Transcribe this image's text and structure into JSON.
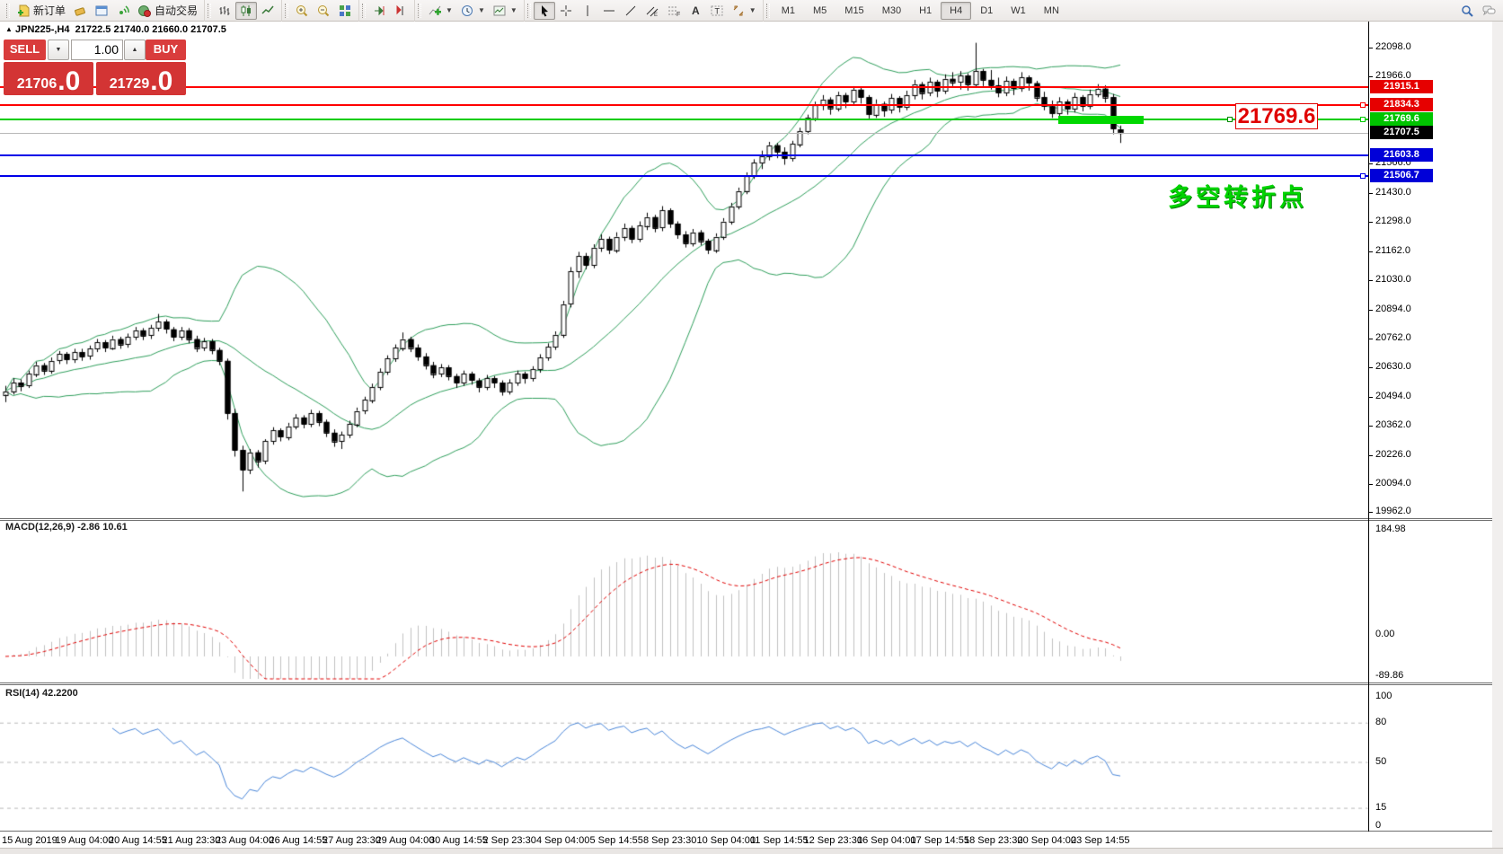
{
  "title": {
    "symbol": "JPN225-,H4",
    "ohlc_text": "21722.5 21740.0 21660.0 21707.5"
  },
  "toolbar": {
    "groups": [
      {
        "name": "trade-group",
        "items": [
          {
            "name": "new-order-button",
            "icon": "new-order",
            "label": "新订单"
          },
          {
            "name": "eraser-button",
            "icon": "eraser"
          },
          {
            "name": "charts-window-button",
            "icon": "window"
          },
          {
            "name": "signals-button",
            "icon": "signal"
          },
          {
            "name": "auto-trading-button",
            "icon": "autotrade",
            "label": "自动交易"
          }
        ]
      },
      {
        "name": "chart-type-group",
        "items": [
          {
            "name": "bar-chart-button",
            "icon": "bars"
          },
          {
            "name": "candlestick-button",
            "icon": "candles",
            "active": true
          },
          {
            "name": "line-chart-button",
            "icon": "linechart"
          }
        ]
      },
      {
        "name": "zoom-group",
        "items": [
          {
            "name": "zoom-in-button",
            "icon": "zoom-in"
          },
          {
            "name": "zoom-out-button",
            "icon": "zoom-out"
          },
          {
            "name": "tile-windows-button",
            "icon": "tiles"
          }
        ]
      },
      {
        "name": "scroll-group",
        "items": [
          {
            "name": "auto-scroll-button",
            "icon": "scroll-end"
          },
          {
            "name": "chart-shift-button",
            "icon": "chart-shift"
          }
        ]
      },
      {
        "name": "insert-group",
        "items": [
          {
            "name": "indicators-button",
            "icon": "indicators",
            "dropdown": true
          },
          {
            "name": "periods-button",
            "icon": "clock",
            "dropdown": true
          },
          {
            "name": "templates-button",
            "icon": "template",
            "dropdown": true
          }
        ]
      },
      {
        "name": "objects-group",
        "items": [
          {
            "name": "cursor-button",
            "icon": "cursor",
            "active": true
          },
          {
            "name": "crosshair-button",
            "icon": "crosshair"
          },
          {
            "name": "vertical-line-button",
            "icon": "vline"
          },
          {
            "name": "horizontal-line-button",
            "icon": "hline"
          },
          {
            "name": "trendline-button",
            "icon": "trendline"
          },
          {
            "name": "equidistant-channel-button",
            "icon": "channel"
          },
          {
            "name": "fibonacci-button",
            "icon": "fibo"
          },
          {
            "name": "text-button",
            "icon": "text-a"
          },
          {
            "name": "text-label-button",
            "icon": "text-t"
          },
          {
            "name": "arrows-button",
            "icon": "arrows",
            "dropdown": true
          }
        ]
      },
      {
        "name": "timeframe-group",
        "items": [
          {
            "name": "tf-m1",
            "label": "M1"
          },
          {
            "name": "tf-m5",
            "label": "M5"
          },
          {
            "name": "tf-m15",
            "label": "M15"
          },
          {
            "name": "tf-m30",
            "label": "M30"
          },
          {
            "name": "tf-h1",
            "label": "H1"
          },
          {
            "name": "tf-h4",
            "label": "H4",
            "active": true
          },
          {
            "name": "tf-d1",
            "label": "D1"
          },
          {
            "name": "tf-w1",
            "label": "W1"
          },
          {
            "name": "tf-mn",
            "label": "MN"
          }
        ]
      }
    ],
    "right_items": [
      {
        "name": "search-button",
        "icon": "search"
      },
      {
        "name": "chat-button",
        "icon": "chat"
      }
    ]
  },
  "one_click": {
    "sell_label": "SELL",
    "buy_label": "BUY",
    "volume": "1.00",
    "sell_price_main": "21706",
    "sell_price_dec": ".0",
    "buy_price_main": "21729",
    "buy_price_dec": ".0"
  },
  "price_lines": [
    {
      "value": "21915.1",
      "price": 21915.1,
      "color": "#ff0000",
      "badge": "#e60000",
      "width": 2,
      "handle": false
    },
    {
      "value": "21834.3",
      "price": 21834.3,
      "color": "#ff0000",
      "badge": "#e60000",
      "width": 2,
      "handle": true
    },
    {
      "value": "21769.6",
      "price": 21769.6,
      "color": "#00cc00",
      "badge": "#00c400",
      "width": 2,
      "handle": true
    },
    {
      "value": "21603.8",
      "price": 21603.8,
      "color": "#0000e8",
      "badge": "#0000d8",
      "width": 2,
      "handle": false
    },
    {
      "value": "21506.7",
      "price": 21506.7,
      "color": "#0000e8",
      "badge": "#0000d8",
      "width": 2,
      "handle": true
    }
  ],
  "current_price": {
    "value": "21707.5",
    "price": 21707.5,
    "line_color": "#b8b8b8",
    "badge": "#000000"
  },
  "annotations": {
    "price_box_text": "21769.6",
    "note_text": "多空转折点",
    "note_color": "#00d400",
    "highlight_color": "#00d800"
  },
  "macd_panel": {
    "label": "MACD(12,26,9)",
    "values": "-2.86 10.61",
    "axis": [
      "184.98",
      "0.00",
      "-89.86"
    ]
  },
  "rsi_panel": {
    "label": "RSI(14)",
    "value": "42.2200",
    "axis": [
      "100",
      "80",
      "50",
      "15",
      "0"
    ]
  },
  "chart_data": {
    "type": "candlestick",
    "symbol": "JPN225-",
    "timeframe": "H4",
    "title": "JPN225-,H4 21722.5 21740.0 21660.0 21707.5",
    "y_axis_ticks": [
      "22098.0",
      "21966.0",
      "21566.0",
      "21430.0",
      "21298.0",
      "21162.0",
      "21030.0",
      "20894.0",
      "20762.0",
      "20630.0",
      "20494.0",
      "20362.0",
      "20226.0",
      "20094.0",
      "19962.0"
    ],
    "x_labels": [
      "15 Aug 2019",
      "19 Aug 04:00",
      "20 Aug 14:55",
      "21 Aug 23:30",
      "23 Aug 04:00",
      "26 Aug 14:55",
      "27 Aug 23:30",
      "29 Aug 04:00",
      "30 Aug 14:55",
      "2 Sep 23:30",
      "4 Sep 04:00",
      "5 Sep 14:55",
      "8 Sep 23:30",
      "10 Sep 04:00",
      "11 Sep 14:55",
      "12 Sep 23:30",
      "16 Sep 04:00",
      "17 Sep 14:55",
      "18 Sep 23:30",
      "20 Sep 04:00",
      "23 Sep 14:55"
    ],
    "overlays": {
      "bollinger": {
        "period": 20,
        "deviation": 2,
        "color": "#2e9e5b"
      }
    },
    "indicators": {
      "macd": {
        "params": [
          12,
          26,
          9
        ],
        "current": [
          -2.86,
          10.61
        ],
        "scale_max": 184.98,
        "scale_min": -89.86,
        "histogram_color": "#c0c0c0",
        "signal_color": "#e00000"
      },
      "rsi": {
        "period": 14,
        "current": 42.22,
        "levels": [
          80,
          50,
          15
        ],
        "line_color": "#4a86d8"
      }
    },
    "ohlc": [
      [
        20505,
        20545,
        20470,
        20520
      ],
      [
        20520,
        20580,
        20505,
        20560
      ],
      [
        20560,
        20575,
        20520,
        20545
      ],
      [
        20545,
        20615,
        20535,
        20600
      ],
      [
        20600,
        20655,
        20585,
        20640
      ],
      [
        20640,
        20650,
        20595,
        20615
      ],
      [
        20615,
        20675,
        20600,
        20660
      ],
      [
        20660,
        20705,
        20645,
        20690
      ],
      [
        20690,
        20700,
        20645,
        20665
      ],
      [
        20665,
        20715,
        20650,
        20700
      ],
      [
        20700,
        20715,
        20660,
        20680
      ],
      [
        20680,
        20730,
        20665,
        20715
      ],
      [
        20715,
        20760,
        20700,
        20745
      ],
      [
        20745,
        20755,
        20700,
        20720
      ],
      [
        20720,
        20775,
        20710,
        20760
      ],
      [
        20760,
        20770,
        20715,
        20735
      ],
      [
        20735,
        20785,
        20720,
        20770
      ],
      [
        20770,
        20815,
        20755,
        20800
      ],
      [
        20800,
        20810,
        20755,
        20775
      ],
      [
        20775,
        20825,
        20760,
        20810
      ],
      [
        20810,
        20875,
        20795,
        20840
      ],
      [
        20840,
        20850,
        20785,
        20805
      ],
      [
        20805,
        20815,
        20750,
        20770
      ],
      [
        20770,
        20815,
        20755,
        20800
      ],
      [
        20800,
        20810,
        20740,
        20760
      ],
      [
        20760,
        20775,
        20700,
        20720
      ],
      [
        20720,
        20765,
        20705,
        20750
      ],
      [
        20750,
        20760,
        20690,
        20710
      ],
      [
        20710,
        20720,
        20640,
        20660
      ],
      [
        20660,
        20670,
        20390,
        20420
      ],
      [
        20420,
        20440,
        20220,
        20250
      ],
      [
        20250,
        20270,
        20060,
        20160
      ],
      [
        20160,
        20255,
        20140,
        20240
      ],
      [
        20240,
        20250,
        20170,
        20200
      ],
      [
        20200,
        20300,
        20185,
        20290
      ],
      [
        20290,
        20355,
        20275,
        20340
      ],
      [
        20340,
        20350,
        20290,
        20310
      ],
      [
        20310,
        20375,
        20295,
        20360
      ],
      [
        20360,
        20415,
        20345,
        20400
      ],
      [
        20400,
        20410,
        20350,
        20370
      ],
      [
        20370,
        20435,
        20355,
        20420
      ],
      [
        20420,
        20430,
        20360,
        20380
      ],
      [
        20380,
        20390,
        20310,
        20330
      ],
      [
        20330,
        20345,
        20265,
        20290
      ],
      [
        20290,
        20335,
        20255,
        20320
      ],
      [
        20320,
        20385,
        20305,
        20370
      ],
      [
        20370,
        20445,
        20355,
        20430
      ],
      [
        20430,
        20495,
        20415,
        20480
      ],
      [
        20480,
        20555,
        20465,
        20540
      ],
      [
        20540,
        20625,
        20525,
        20610
      ],
      [
        20610,
        20685,
        20595,
        20670
      ],
      [
        20670,
        20735,
        20655,
        20720
      ],
      [
        20720,
        20790,
        20705,
        20760
      ],
      [
        20760,
        20770,
        20700,
        20720
      ],
      [
        20720,
        20735,
        20660,
        20680
      ],
      [
        20680,
        20695,
        20620,
        20640
      ],
      [
        20640,
        20655,
        20580,
        20600
      ],
      [
        20600,
        20645,
        20585,
        20630
      ],
      [
        20630,
        20640,
        20570,
        20590
      ],
      [
        20590,
        20600,
        20535,
        20560
      ],
      [
        20560,
        20615,
        20545,
        20600
      ],
      [
        20600,
        20610,
        20550,
        20570
      ],
      [
        20570,
        20580,
        20515,
        20540
      ],
      [
        20540,
        20595,
        20525,
        20580
      ],
      [
        20580,
        20590,
        20535,
        20560
      ],
      [
        20560,
        20570,
        20500,
        20520
      ],
      [
        20520,
        20575,
        20505,
        20560
      ],
      [
        20560,
        20615,
        20545,
        20600
      ],
      [
        20600,
        20610,
        20555,
        20580
      ],
      [
        20580,
        20635,
        20565,
        20620
      ],
      [
        20620,
        20690,
        20605,
        20675
      ],
      [
        20675,
        20740,
        20660,
        20725
      ],
      [
        20725,
        20795,
        20710,
        20780
      ],
      [
        20780,
        20935,
        20765,
        20920
      ],
      [
        20920,
        21090,
        20905,
        21070
      ],
      [
        21070,
        21160,
        21040,
        21140
      ],
      [
        21140,
        21155,
        21080,
        21100
      ],
      [
        21100,
        21195,
        21085,
        21180
      ],
      [
        21180,
        21240,
        21160,
        21220
      ],
      [
        21220,
        21230,
        21150,
        21170
      ],
      [
        21170,
        21250,
        21155,
        21230
      ],
      [
        21230,
        21290,
        21210,
        21270
      ],
      [
        21270,
        21280,
        21200,
        21220
      ],
      [
        21220,
        21300,
        21205,
        21280
      ],
      [
        21280,
        21340,
        21260,
        21320
      ],
      [
        21320,
        21330,
        21250,
        21270
      ],
      [
        21270,
        21370,
        21255,
        21350
      ],
      [
        21350,
        21360,
        21270,
        21290
      ],
      [
        21290,
        21300,
        21220,
        21240
      ],
      [
        21240,
        21255,
        21180,
        21200
      ],
      [
        21200,
        21265,
        21185,
        21250
      ],
      [
        21250,
        21260,
        21190,
        21210
      ],
      [
        21210,
        21220,
        21150,
        21170
      ],
      [
        21170,
        21245,
        21155,
        21230
      ],
      [
        21230,
        21315,
        21215,
        21300
      ],
      [
        21300,
        21385,
        21285,
        21370
      ],
      [
        21370,
        21455,
        21355,
        21440
      ],
      [
        21440,
        21525,
        21425,
        21510
      ],
      [
        21510,
        21585,
        21495,
        21570
      ],
      [
        21570,
        21625,
        21540,
        21600
      ],
      [
        21600,
        21665,
        21580,
        21650
      ],
      [
        21650,
        21660,
        21590,
        21620
      ],
      [
        21620,
        21640,
        21560,
        21590
      ],
      [
        21590,
        21670,
        21575,
        21655
      ],
      [
        21655,
        21730,
        21640,
        21715
      ],
      [
        21715,
        21790,
        21700,
        21775
      ],
      [
        21775,
        21850,
        21760,
        21835
      ],
      [
        21835,
        21880,
        21810,
        21860
      ],
      [
        21860,
        21870,
        21790,
        21820
      ],
      [
        21820,
        21895,
        21805,
        21880
      ],
      [
        21880,
        21890,
        21820,
        21850
      ],
      [
        21850,
        21920,
        21835,
        21905
      ],
      [
        21905,
        21915,
        21840,
        21870
      ],
      [
        21870,
        21880,
        21770,
        21790
      ],
      [
        21790,
        21860,
        21775,
        21840
      ],
      [
        21840,
        21850,
        21780,
        21810
      ],
      [
        21810,
        21885,
        21795,
        21865
      ],
      [
        21865,
        21875,
        21800,
        21825
      ],
      [
        21825,
        21900,
        21810,
        21880
      ],
      [
        21880,
        21950,
        21860,
        21930
      ],
      [
        21930,
        21940,
        21860,
        21890
      ],
      [
        21890,
        21960,
        21875,
        21940
      ],
      [
        21940,
        21950,
        21870,
        21900
      ],
      [
        21900,
        21975,
        21885,
        21955
      ],
      [
        21955,
        21985,
        21920,
        21940
      ],
      [
        21940,
        21990,
        21905,
        21970
      ],
      [
        21970,
        21980,
        21900,
        21930
      ],
      [
        21930,
        22120,
        21915,
        21990
      ],
      [
        21990,
        22000,
        21920,
        21950
      ],
      [
        21950,
        21995,
        21905,
        21925
      ],
      [
        21925,
        21960,
        21870,
        21890
      ],
      [
        21890,
        21965,
        21875,
        21945
      ],
      [
        21945,
        21955,
        21880,
        21910
      ],
      [
        21910,
        21985,
        21895,
        21960
      ],
      [
        21960,
        21970,
        21900,
        21935
      ],
      [
        21935,
        21945,
        21850,
        21870
      ],
      [
        21870,
        21895,
        21810,
        21830
      ],
      [
        21830,
        21855,
        21775,
        21795
      ],
      [
        21795,
        21870,
        21780,
        21850
      ],
      [
        21850,
        21860,
        21790,
        21815
      ],
      [
        21815,
        21890,
        21800,
        21870
      ],
      [
        21870,
        21880,
        21805,
        21830
      ],
      [
        21830,
        21905,
        21815,
        21885
      ],
      [
        21885,
        21930,
        21870,
        21910
      ],
      [
        21910,
        21925,
        21845,
        21870
      ],
      [
        21870,
        21885,
        21700,
        21725
      ],
      [
        21722.5,
        21740,
        21660,
        21707.5
      ]
    ]
  }
}
